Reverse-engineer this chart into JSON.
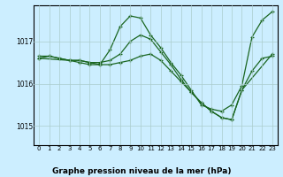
{
  "title": "Graphe pression niveau de la mer (hPa)",
  "bg_color": "#cceeff",
  "grid_color": "#aacccc",
  "line_color": "#1a6620",
  "marker": "+",
  "markersize": 3.5,
  "linewidth": 0.9,
  "xlim": [
    -0.5,
    23.5
  ],
  "ylim": [
    1014.55,
    1017.85
  ],
  "xticks": [
    0,
    1,
    2,
    3,
    4,
    5,
    6,
    7,
    8,
    9,
    10,
    11,
    12,
    13,
    14,
    15,
    16,
    17,
    18,
    19,
    20,
    21,
    22,
    23
  ],
  "yticks": [
    1015,
    1016,
    1017
  ],
  "xtick_fontsize": 5.0,
  "ytick_fontsize": 5.5,
  "title_fontsize": 6.5,
  "series": [
    {
      "x": [
        0,
        1,
        2,
        3,
        4,
        5,
        6,
        7,
        8,
        9,
        10,
        11,
        12,
        13,
        14,
        15,
        16,
        17,
        18,
        19,
        20,
        21,
        22,
        23
      ],
      "y": [
        1016.6,
        1016.65,
        1016.6,
        1016.55,
        1016.55,
        1016.5,
        1016.45,
        1016.8,
        1017.35,
        1017.6,
        1017.55,
        1017.15,
        1016.85,
        1016.5,
        1016.2,
        1015.85,
        1015.5,
        1015.4,
        1015.35,
        1015.5,
        1015.95,
        1017.1,
        1017.5,
        1017.7
      ]
    },
    {
      "x": [
        0,
        1,
        2,
        3,
        4,
        5,
        6,
        7,
        8,
        9,
        10,
        11,
        12,
        13,
        14,
        15,
        16,
        17,
        18,
        19,
        20,
        21,
        22,
        23
      ],
      "y": [
        1016.65,
        1016.65,
        1016.6,
        1016.55,
        1016.55,
        1016.5,
        1016.5,
        1016.55,
        1016.7,
        1017.0,
        1017.15,
        1017.05,
        1016.75,
        1016.45,
        1016.1,
        1015.8,
        1015.55,
        1015.35,
        1015.2,
        1015.15,
        1015.85,
        1016.3,
        1016.6,
        1016.65
      ]
    },
    {
      "x": [
        0,
        3,
        4,
        5,
        6,
        7,
        8,
        9,
        10,
        11,
        12,
        13,
        14,
        15,
        16,
        17,
        18,
        19,
        20,
        23
      ],
      "y": [
        1016.6,
        1016.55,
        1016.5,
        1016.45,
        1016.45,
        1016.45,
        1016.5,
        1016.55,
        1016.65,
        1016.7,
        1016.55,
        1016.3,
        1016.05,
        1015.8,
        1015.55,
        1015.35,
        1015.2,
        1015.15,
        1015.85,
        1016.7
      ]
    }
  ]
}
